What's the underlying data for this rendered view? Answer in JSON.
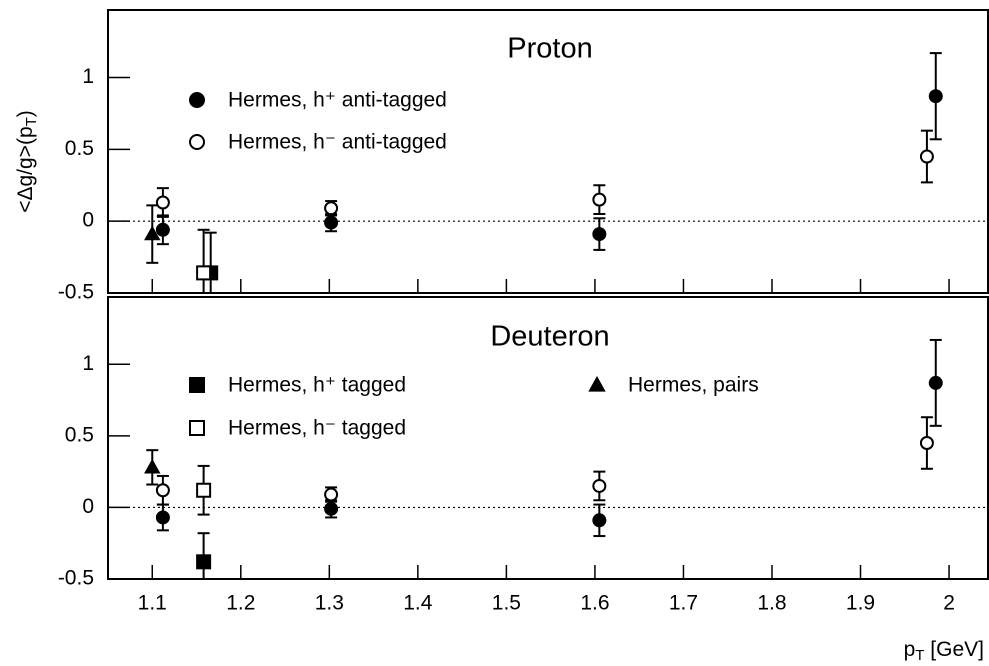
{
  "chart_data": [
    {
      "type": "scatter",
      "title": "Proton",
      "ylabel": [
        "<Δg/g>(p",
        "T",
        ")"
      ],
      "xlim": [
        1.05,
        2.044
      ],
      "ylim": [
        -0.5,
        1.47
      ],
      "xticks": [
        1.1,
        1.2,
        1.3,
        1.4,
        1.5,
        1.6,
        1.7,
        1.8,
        1.9,
        2
      ],
      "yticks": [
        -0.5,
        0,
        0.5,
        1
      ],
      "series": [
        {
          "name": "Hermes, h⁺ anti-tagged",
          "marker": "circle",
          "filled": true,
          "color": "#000000",
          "x": [
            1.112,
            1.302,
            1.605,
            1.985
          ],
          "values": [
            -0.06,
            -0.01,
            -0.09,
            0.87
          ],
          "errors": [
            0.1,
            0.06,
            0.11,
            0.3
          ]
        },
        {
          "name": "Hermes, h⁻ anti-tagged",
          "marker": "circle",
          "filled": false,
          "color": "#000000",
          "x": [
            1.112,
            1.302,
            1.605,
            1.975
          ],
          "values": [
            0.13,
            0.09,
            0.15,
            0.45
          ],
          "errors": [
            0.1,
            0.05,
            0.1,
            0.18
          ]
        },
        {
          "marker": "square",
          "filled": true,
          "color": "#000000",
          "x": [
            1.166
          ],
          "values": [
            -0.36
          ],
          "errors": [
            0.28
          ]
        },
        {
          "marker": "triangle",
          "filled": true,
          "color": "#000000",
          "x": [
            1.1
          ],
          "values": [
            -0.09
          ],
          "errors": [
            0.2
          ]
        },
        {
          "marker": "square",
          "filled": false,
          "color": "#000000",
          "x": [
            1.158
          ],
          "values": [
            -0.36
          ],
          "errors": [
            0.3
          ]
        }
      ]
    },
    {
      "type": "scatter",
      "title": "Deuteron",
      "xlabel": [
        "p",
        "T",
        " [GeV]"
      ],
      "xlim": [
        1.05,
        2.044
      ],
      "ylim": [
        -0.5,
        1.47
      ],
      "xticks": [
        1.1,
        1.2,
        1.3,
        1.4,
        1.5,
        1.6,
        1.7,
        1.8,
        1.9,
        2
      ],
      "yticks": [
        -0.5,
        0,
        0.5,
        1
      ],
      "series": [
        {
          "marker": "circle",
          "filled": true,
          "color": "#000000",
          "x": [
            1.112,
            1.302,
            1.605,
            1.985
          ],
          "values": [
            -0.07,
            -0.01,
            -0.09,
            0.87
          ],
          "errors": [
            0.09,
            0.06,
            0.11,
            0.3
          ]
        },
        {
          "marker": "circle",
          "filled": false,
          "color": "#000000",
          "x": [
            1.112,
            1.302,
            1.605,
            1.975
          ],
          "values": [
            0.12,
            0.09,
            0.15,
            0.45
          ],
          "errors": [
            0.1,
            0.05,
            0.1,
            0.18
          ]
        },
        {
          "name": "Hermes, h⁺ tagged",
          "marker": "square",
          "filled": true,
          "color": "#000000",
          "x": [
            1.158
          ],
          "values": [
            -0.38
          ],
          "errors": [
            0.2
          ]
        },
        {
          "name": "Hermes, pairs",
          "marker": "triangle",
          "filled": true,
          "color": "#000000",
          "x": [
            1.1
          ],
          "values": [
            0.28
          ],
          "errors": [
            0.12
          ]
        },
        {
          "name": "Hermes, h⁻ tagged",
          "marker": "square",
          "filled": false,
          "color": "#000000",
          "x": [
            1.158
          ],
          "values": [
            0.12
          ],
          "errors": [
            0.17
          ]
        }
      ]
    }
  ]
}
